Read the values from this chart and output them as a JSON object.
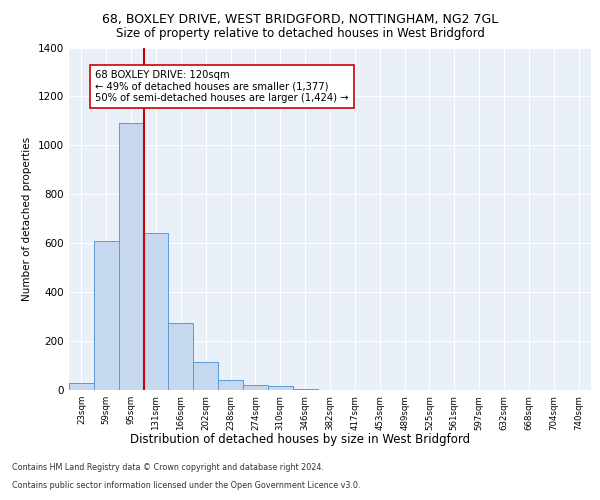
{
  "title_line1": "68, BOXLEY DRIVE, WEST BRIDGFORD, NOTTINGHAM, NG2 7GL",
  "title_line2": "Size of property relative to detached houses in West Bridgford",
  "xlabel": "Distribution of detached houses by size in West Bridgford",
  "ylabel": "Number of detached properties",
  "categories": [
    "23sqm",
    "59sqm",
    "95sqm",
    "131sqm",
    "166sqm",
    "202sqm",
    "238sqm",
    "274sqm",
    "310sqm",
    "346sqm",
    "382sqm",
    "417sqm",
    "453sqm",
    "489sqm",
    "525sqm",
    "561sqm",
    "597sqm",
    "632sqm",
    "668sqm",
    "704sqm",
    "740sqm"
  ],
  "values": [
    30,
    610,
    1090,
    640,
    275,
    115,
    40,
    20,
    15,
    5,
    0,
    0,
    0,
    0,
    0,
    0,
    0,
    0,
    0,
    0,
    0
  ],
  "bar_color": "#c5d8f0",
  "bar_edge_color": "#5b9bd5",
  "vline_x": 2.5,
  "vline_color": "#cc0000",
  "annotation_text": "68 BOXLEY DRIVE: 120sqm\n← 49% of detached houses are smaller (1,377)\n50% of semi-detached houses are larger (1,424) →",
  "annotation_box_color": "#ffffff",
  "annotation_box_edge": "#cc0000",
  "ylim": [
    0,
    1400
  ],
  "yticks": [
    0,
    200,
    400,
    600,
    800,
    1000,
    1200,
    1400
  ],
  "footnote1": "Contains HM Land Registry data © Crown copyright and database right 2024.",
  "footnote2": "Contains public sector information licensed under the Open Government Licence v3.0.",
  "bg_color": "#eaf0f8",
  "fig_bg_color": "#ffffff"
}
